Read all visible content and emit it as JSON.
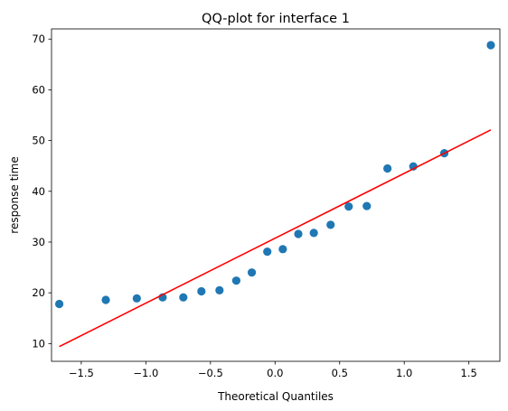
{
  "chart_data": {
    "type": "scatter",
    "title": "QQ-plot for interface 1",
    "xlabel": "Theoretical Quantiles",
    "ylabel": "response time",
    "xlim": [
      -1.73,
      1.74
    ],
    "ylim": [
      6.5,
      72
    ],
    "x_ticks": [
      -1.5,
      -1.0,
      -0.5,
      0.0,
      0.5,
      1.0,
      1.5
    ],
    "x_tick_labels": [
      "−1.5",
      "−1.0",
      "−0.5",
      "0.0",
      "0.5",
      "1.0",
      "1.5"
    ],
    "y_ticks": [
      10,
      20,
      30,
      40,
      50,
      60,
      70
    ],
    "y_tick_labels": [
      "10",
      "20",
      "30",
      "40",
      "50",
      "60",
      "70"
    ],
    "grid": false,
    "series": [
      {
        "kind": "points",
        "color": "#1f77b4",
        "x": [
          -1.67,
          -1.31,
          -1.07,
          -0.87,
          -0.71,
          -0.57,
          -0.43,
          -0.3,
          -0.18,
          -0.06,
          0.06,
          0.18,
          0.3,
          0.43,
          0.57,
          0.71,
          0.87,
          1.07,
          1.31,
          1.67
        ],
        "y": [
          17.8,
          18.6,
          18.9,
          19.1,
          19.1,
          20.3,
          20.5,
          22.4,
          24.0,
          28.1,
          28.6,
          31.6,
          31.8,
          33.4,
          37.0,
          37.1,
          44.5,
          44.9,
          47.5,
          68.8
        ]
      },
      {
        "kind": "reference-line",
        "color": "#ff0000",
        "x": [
          -1.67,
          1.67
        ],
        "y": [
          9.4,
          52.1
        ]
      }
    ]
  }
}
